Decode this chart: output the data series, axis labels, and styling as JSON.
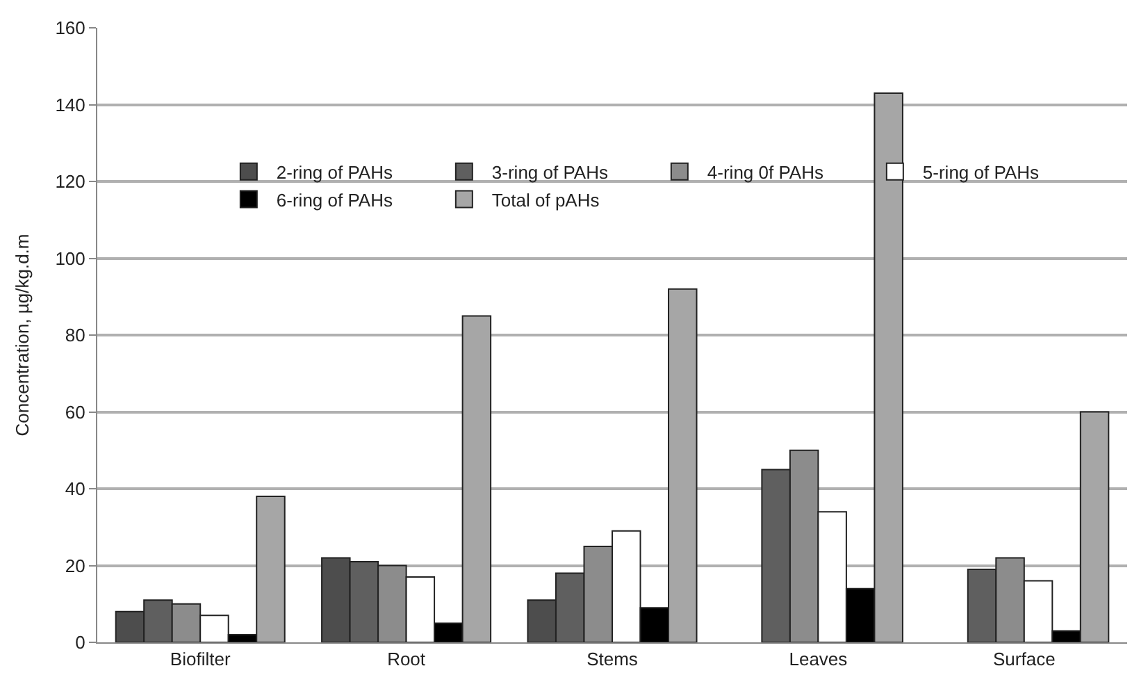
{
  "chart_data": {
    "type": "bar",
    "ylabel": "Concentration, µg/kg.d.m",
    "categories": [
      "Biofilter",
      "Root",
      "Stems",
      "Leaves",
      "Surface"
    ],
    "series": [
      {
        "name": "2-ring of PAHs",
        "color": "#4d4d4d",
        "values": [
          8,
          22,
          11,
          null,
          null
        ]
      },
      {
        "name": "3-ring of PAHs",
        "color": "#5f5f5f",
        "values": [
          11,
          21,
          18,
          45,
          19
        ]
      },
      {
        "name": "4-ring 0f PAHs",
        "color": "#8c8c8c",
        "values": [
          10,
          20,
          25,
          50,
          22
        ]
      },
      {
        "name": "5-ring of PAHs",
        "color": "#ffffff",
        "values": [
          7,
          17,
          29,
          34,
          16
        ]
      },
      {
        "name": "6-ring of PAHs",
        "color": "#000000",
        "values": [
          2,
          5,
          9,
          14,
          3
        ]
      },
      {
        "name": "Total of pAHs",
        "color": "#a6a6a6",
        "values": [
          38,
          85,
          92,
          143,
          60
        ]
      }
    ],
    "ylim": [
      0,
      160
    ],
    "yticks": [
      0,
      20,
      40,
      60,
      80,
      100,
      120,
      140,
      160
    ],
    "grid": "y",
    "legend": "top left"
  }
}
